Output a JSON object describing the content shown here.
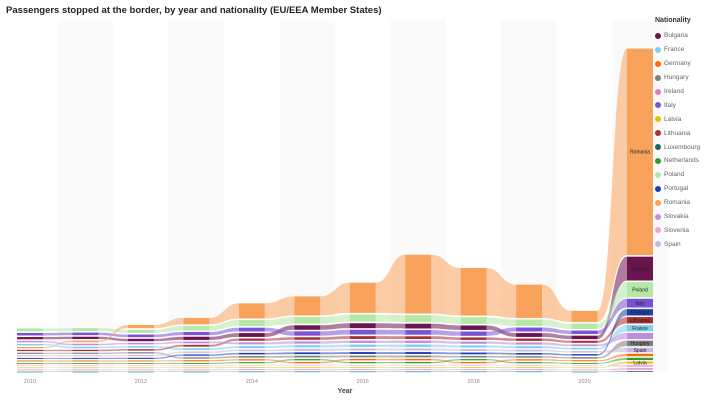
{
  "title": "Passengers stopped at the border, by year and nationality (EU/EEA Member States)",
  "chart_data": {
    "type": "area",
    "subtype": "ribbon (stacked, sorted per year)",
    "xlabel": "Year",
    "x": [
      2010,
      2011,
      2012,
      2013,
      2014,
      2015,
      2016,
      2017,
      2018,
      2019,
      2020,
      2021
    ],
    "x_ticks": [
      "2010",
      "2012",
      "2014",
      "2016",
      "2018",
      "2020"
    ],
    "legend_title": "Nationality",
    "legend_position": "right",
    "series": [
      {
        "name": "Bulgaria",
        "color": "#6b1550",
        "values": [
          14,
          14,
          15,
          20,
          24,
          28,
          31,
          30,
          28,
          24,
          22,
          150
        ]
      },
      {
        "name": "France",
        "color": "#7fd0f0",
        "values": [
          9,
          9,
          10,
          11,
          13,
          14,
          15,
          15,
          14,
          13,
          11,
          40
        ]
      },
      {
        "name": "Germany",
        "color": "#ff6a00",
        "values": [
          6,
          6,
          6,
          7,
          8,
          8,
          9,
          9,
          8,
          8,
          7,
          15
        ]
      },
      {
        "name": "Hungary",
        "color": "#7f7f7f",
        "values": [
          7,
          7,
          8,
          8,
          10,
          11,
          11,
          11,
          10,
          9,
          9,
          35
        ]
      },
      {
        "name": "Ireland",
        "color": "#e377c2",
        "values": [
          3,
          3,
          3,
          3,
          4,
          4,
          4,
          4,
          4,
          4,
          3,
          8
        ]
      },
      {
        "name": "Italy",
        "color": "#7b52d4",
        "values": [
          16,
          16,
          17,
          20,
          24,
          27,
          30,
          29,
          27,
          25,
          22,
          55
        ]
      },
      {
        "name": "Latvia",
        "color": "#e0c000",
        "values": [
          3,
          3,
          3,
          3,
          4,
          4,
          4,
          4,
          4,
          4,
          3,
          12
        ]
      },
      {
        "name": "Lithuania",
        "color": "#a83232",
        "values": [
          8,
          8,
          9,
          11,
          14,
          16,
          18,
          17,
          16,
          15,
          13,
          40
        ]
      },
      {
        "name": "Luxembourg",
        "color": "#0f6e5c",
        "values": [
          2,
          2,
          2,
          2,
          3,
          3,
          3,
          3,
          3,
          3,
          2,
          5
        ]
      },
      {
        "name": "Netherlands",
        "color": "#2ca02c",
        "values": [
          5,
          5,
          5,
          6,
          7,
          8,
          8,
          8,
          8,
          7,
          6,
          14
        ]
      },
      {
        "name": "Poland",
        "color": "#b5e8a7",
        "values": [
          18,
          18,
          20,
          28,
          38,
          42,
          45,
          44,
          42,
          40,
          34,
          95
        ]
      },
      {
        "name": "Portugal",
        "color": "#1f3fae",
        "values": [
          6,
          6,
          7,
          8,
          10,
          11,
          12,
          12,
          11,
          10,
          9,
          40
        ]
      },
      {
        "name": "Romania",
        "color": "#f8a25c",
        "values": [
          8,
          10,
          20,
          40,
          95,
          120,
          190,
          370,
          300,
          210,
          70,
          1300
        ]
      },
      {
        "name": "Slovakia",
        "color": "#c08be0",
        "values": [
          9,
          9,
          10,
          11,
          13,
          14,
          15,
          15,
          14,
          13,
          11,
          38
        ]
      },
      {
        "name": "Slovenia",
        "color": "#f2a1d6",
        "values": [
          3,
          3,
          3,
          3,
          4,
          4,
          4,
          4,
          4,
          4,
          3,
          10
        ]
      },
      {
        "name": "Spain",
        "color": "#c8b6e2",
        "values": [
          6,
          6,
          7,
          8,
          10,
          11,
          12,
          12,
          11,
          10,
          9,
          28
        ]
      }
    ],
    "series_labels_shown": [
      "Romania",
      "Bulgaria",
      "Poland",
      "Italy",
      "Spain",
      "Portugal",
      "Lithuania",
      "France",
      "Hungary",
      "Latvia"
    ]
  }
}
